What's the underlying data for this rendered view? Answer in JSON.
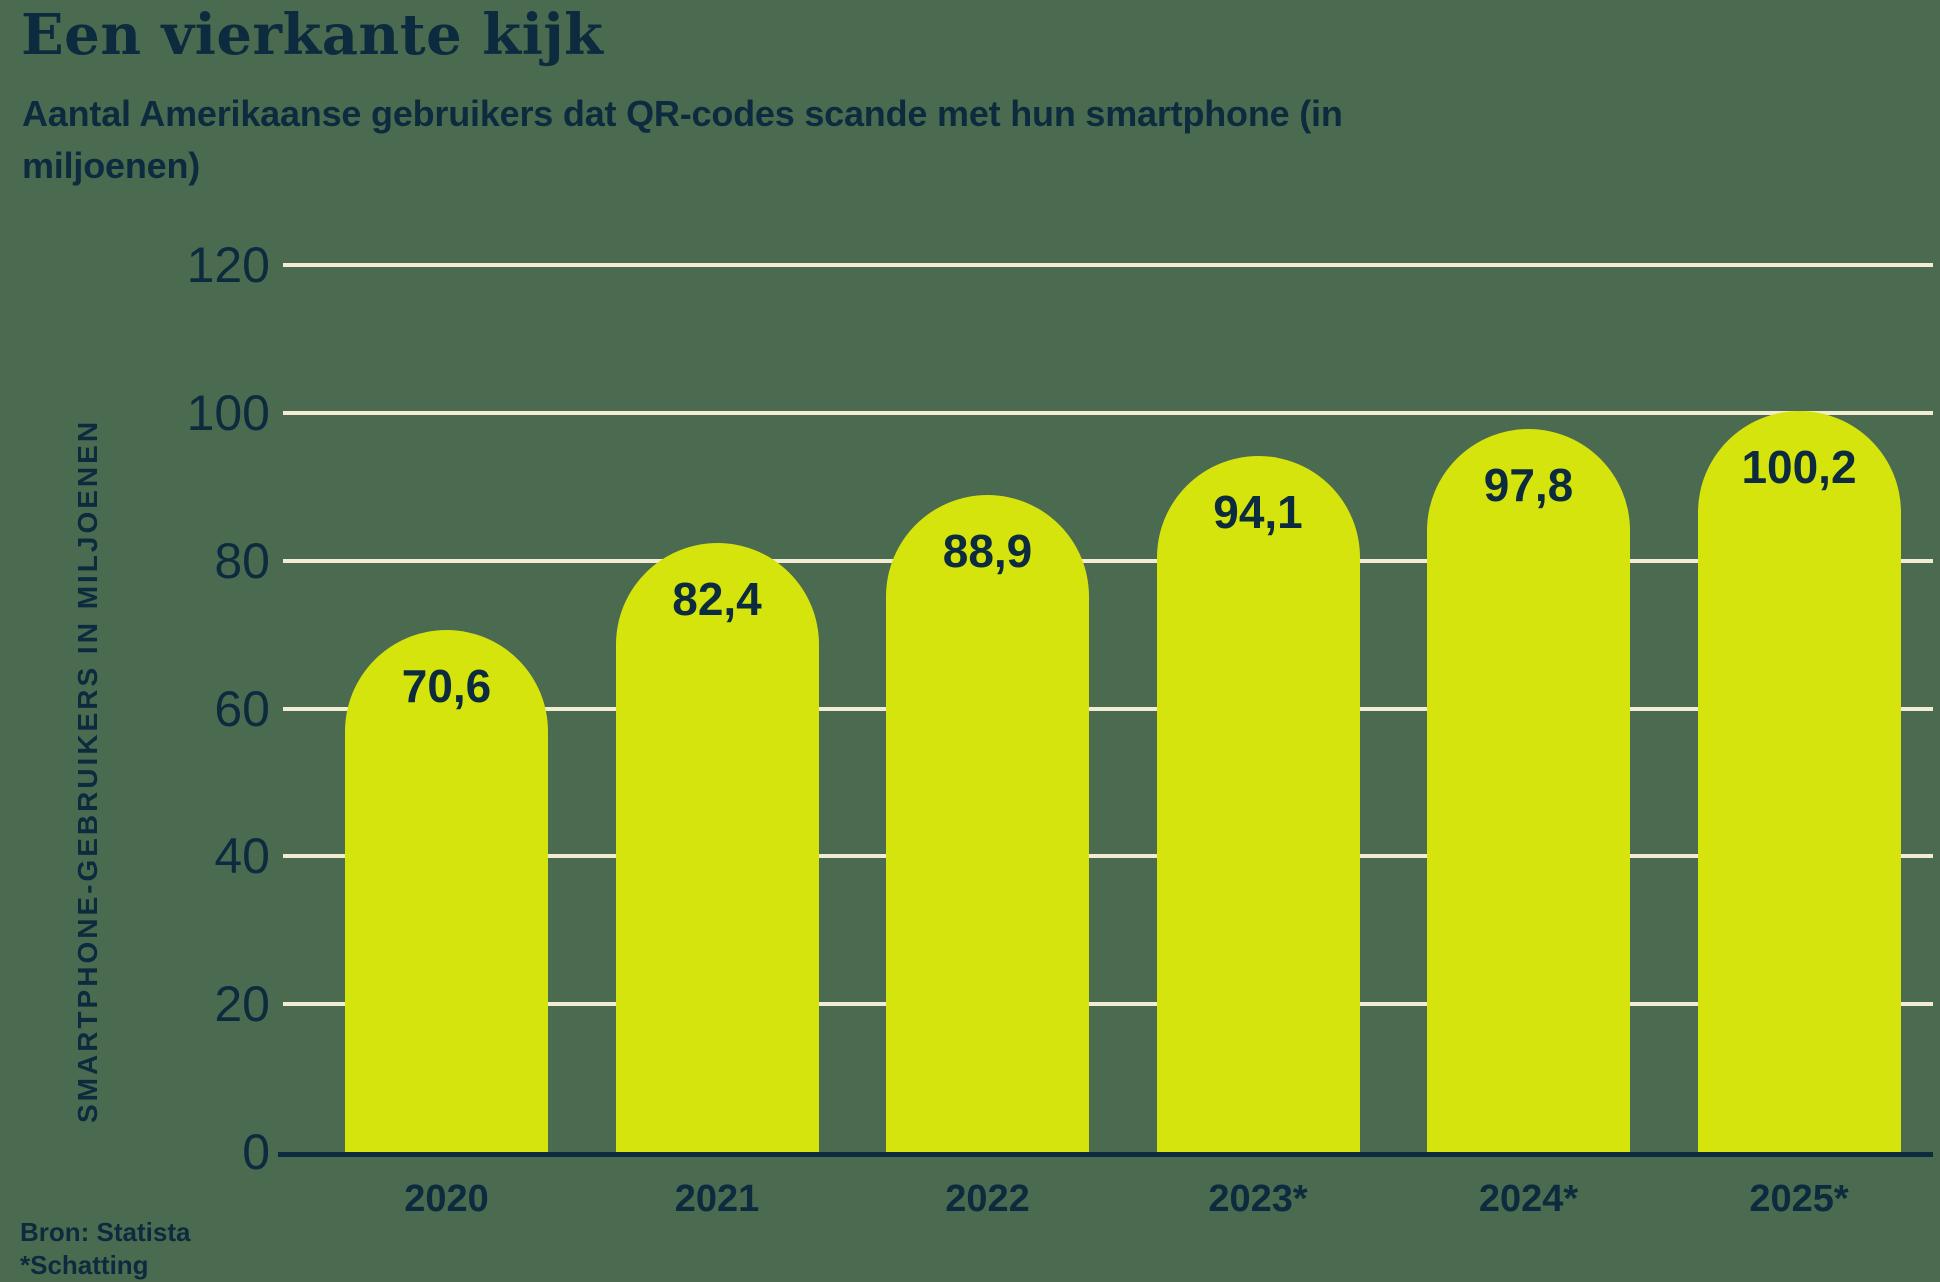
{
  "page": {
    "title": "Een vierkante kijk",
    "subtitle": "Aantal Amerikaanse gebruikers dat QR-codes scande met hun smartphone (in miljoenen)",
    "source": "Bron: Statista",
    "footnote": "*Schatting"
  },
  "colors": {
    "background": "#4B6B50",
    "bar_fill": "#D5E40C",
    "gridline": "#F2EDD2",
    "text_navy": "#0D2B3E"
  },
  "chart_data": {
    "type": "bar",
    "title": "Een vierkante kijk",
    "subtitle": "Aantal Amerikaanse gebruikers dat QR-codes scande met hun smartphone (in miljoenen)",
    "categories": [
      "2020",
      "2021",
      "2022",
      "2023*",
      "2024*",
      "2025*"
    ],
    "values": [
      70.6,
      82.4,
      88.9,
      94.1,
      97.8,
      100.2
    ],
    "value_labels": [
      "70,6",
      "82,4",
      "88,9",
      "94,1",
      "97,8",
      "100,2"
    ],
    "xlabel": "",
    "ylabel": "SMARTPHONE-GEBRUIKERS IN MILJOENEN",
    "ylim": [
      0,
      120
    ],
    "yticks": [
      0,
      20,
      40,
      60,
      80,
      100,
      120
    ],
    "grid": true,
    "legend": false,
    "source": "Bron: Statista",
    "footnote": "*Schatting"
  }
}
